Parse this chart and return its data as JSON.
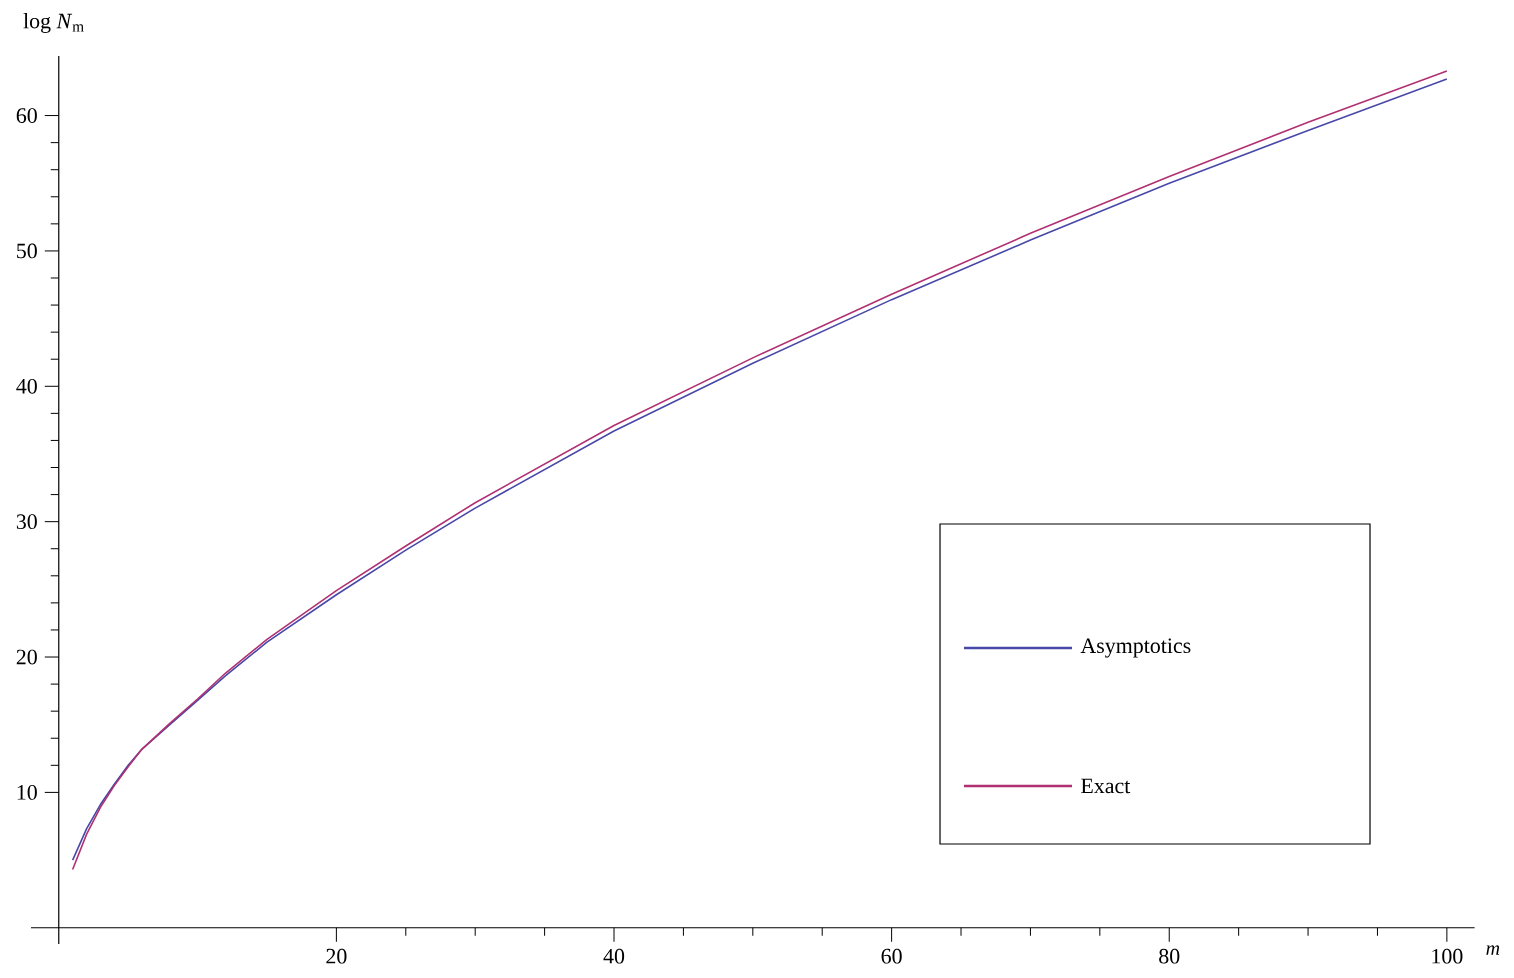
{
  "chart_data": {
    "type": "line",
    "xlabel": "m",
    "ylabel": "log *N*$_{m}$",
    "x": [
      1,
      2,
      3,
      4,
      5,
      6,
      8,
      10,
      12,
      15,
      20,
      25,
      30,
      40,
      50,
      60,
      70,
      80,
      90,
      100
    ],
    "series": [
      {
        "name": "Asymptotics",
        "color": "#4848a8",
        "values": [
          5.0,
          7.3,
          9.1,
          10.6,
          12.0,
          13.2,
          15.0,
          16.8,
          18.6,
          21.1,
          24.6,
          27.9,
          31.0,
          36.7,
          41.7,
          46.4,
          50.8,
          55.0,
          58.9,
          62.7
        ]
      },
      {
        "name": "Exact",
        "color": "#b03072",
        "values": [
          4.3,
          6.9,
          8.9,
          10.5,
          11.9,
          13.2,
          15.1,
          16.9,
          18.8,
          21.3,
          24.9,
          28.2,
          31.4,
          37.1,
          42.1,
          46.8,
          51.3,
          55.5,
          59.5,
          63.3
        ]
      }
    ],
    "xlim": [
      -2,
      102
    ],
    "ylim": [
      -1.2,
      64.4
    ],
    "xticks": [
      20,
      40,
      60,
      80,
      100
    ],
    "yticks": [
      10,
      20,
      30,
      40,
      50,
      60
    ],
    "legend": "bottom right"
  }
}
